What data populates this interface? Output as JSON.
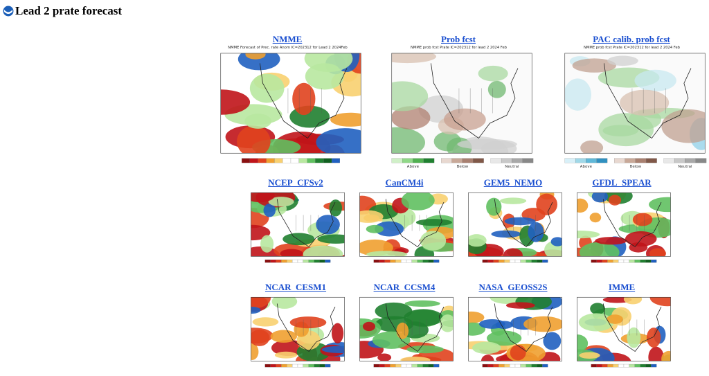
{
  "header": {
    "title": "Lead 2 prate forecast"
  },
  "rows": [
    {
      "panels": [
        {
          "label": "NMME",
          "caption": "NMME Forecast of Prec. rate Anom IC=202312 for Lead 2 2024Feb",
          "kind": "anom"
        },
        {
          "label": "Prob fcst",
          "caption": "NMME prob fcst Prate IC=202312 for lead 2 2024 Feb",
          "kind": "prob",
          "legend": [
            "Above",
            "Below",
            "Neutral"
          ]
        },
        {
          "label": "PAC calib. prob fcst",
          "caption": "NMME prob fcst Prate IC=202312 for lead 2 2024 Feb",
          "kind": "pac",
          "legend": [
            "Above",
            "Below",
            "Neutral"
          ]
        }
      ]
    },
    {
      "panels": [
        {
          "label": "NCEP_CFSv2",
          "kind": "anom"
        },
        {
          "label": "CanCM4i",
          "kind": "anom"
        },
        {
          "label": "GEM5_NEMO",
          "kind": "anom"
        },
        {
          "label": "GFDL_SPEAR",
          "kind": "anom"
        }
      ]
    },
    {
      "panels": [
        {
          "label": "NCAR_CESM1",
          "kind": "anom"
        },
        {
          "label": "NCAR_CCSM4",
          "kind": "anom"
        },
        {
          "label": "NASA_GEOSS2S",
          "kind": "anom"
        },
        {
          "label": "IMME",
          "kind": "anom"
        }
      ]
    }
  ]
}
